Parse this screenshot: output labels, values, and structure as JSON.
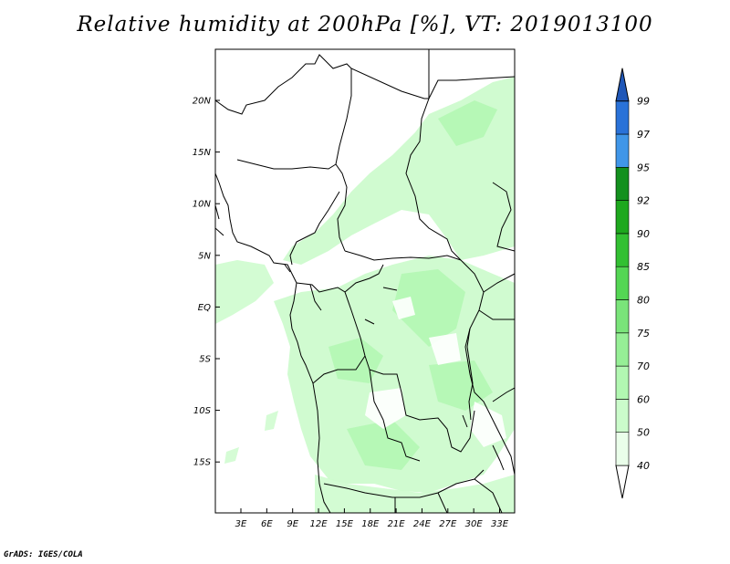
{
  "map": {
    "title": "Relative humidity at 200hPa [%], VT: 2019013100",
    "credit": "GrADS: IGES/COLA",
    "lat_labels": [
      "20N",
      "15N",
      "10N",
      "5N",
      "EQ",
      "5S",
      "10S",
      "15S"
    ],
    "lon_labels": [
      "3E",
      "6E",
      "9E",
      "12E",
      "15E",
      "18E",
      "21E",
      "24E",
      "27E",
      "30E",
      "33E"
    ],
    "extent": {
      "lon": [
        0,
        35
      ],
      "lat": [
        -19.5,
        25
      ]
    }
  },
  "colorbar": {
    "labels": [
      "40",
      "50",
      "60",
      "70",
      "75",
      "80",
      "85",
      "90",
      "92",
      "95",
      "97",
      "99"
    ],
    "colors": [
      "#ffffff",
      "#eafeea",
      "#cbfbcb",
      "#b2f7b2",
      "#96ef96",
      "#7ae47a",
      "#54d654",
      "#32c032",
      "#1ea81e",
      "#13901e",
      "#4096e8",
      "#2a72d8",
      "#1f57b8"
    ]
  }
}
